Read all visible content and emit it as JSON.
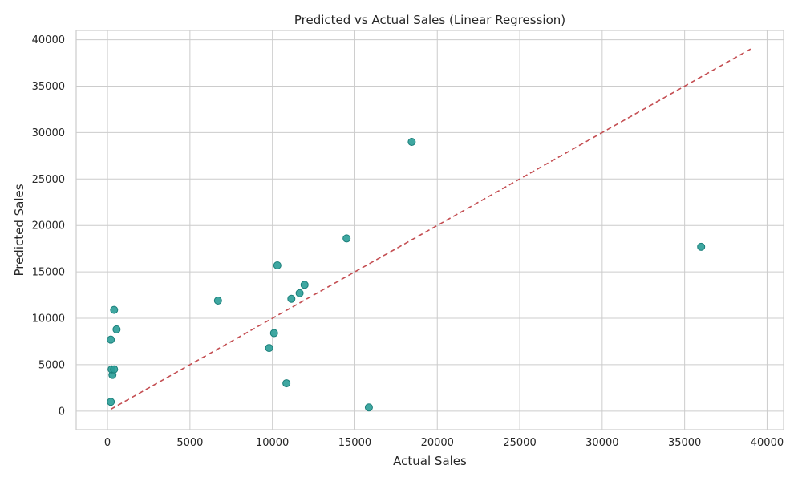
{
  "chart_data": {
    "type": "scatter",
    "title": "Predicted vs Actual Sales (Linear Regression)",
    "xlabel": "Actual Sales",
    "ylabel": "Predicted Sales",
    "xlim": [
      -1900,
      41000
    ],
    "ylim": [
      -2000,
      41000
    ],
    "x_ticks": [
      0,
      5000,
      10000,
      15000,
      20000,
      25000,
      30000,
      35000,
      40000
    ],
    "y_ticks": [
      0,
      5000,
      10000,
      15000,
      20000,
      25000,
      30000,
      35000,
      40000
    ],
    "grid": true,
    "colors": {
      "points": "#2a9d97",
      "reference_line": "#c44e52"
    },
    "reference_line": {
      "x": [
        200,
        39000
      ],
      "y": [
        200,
        39000
      ]
    },
    "points": [
      {
        "x": 200,
        "y": 1000
      },
      {
        "x": 300,
        "y": 3900
      },
      {
        "x": 250,
        "y": 4500
      },
      {
        "x": 400,
        "y": 4500
      },
      {
        "x": 200,
        "y": 7700
      },
      {
        "x": 550,
        "y": 8800
      },
      {
        "x": 400,
        "y": 10900
      },
      {
        "x": 6700,
        "y": 11900
      },
      {
        "x": 9800,
        "y": 6800
      },
      {
        "x": 10100,
        "y": 8400
      },
      {
        "x": 10300,
        "y": 15700
      },
      {
        "x": 10850,
        "y": 3000
      },
      {
        "x": 11150,
        "y": 12100
      },
      {
        "x": 11650,
        "y": 12700
      },
      {
        "x": 11950,
        "y": 13600
      },
      {
        "x": 14500,
        "y": 18600
      },
      {
        "x": 15850,
        "y": 400
      },
      {
        "x": 18450,
        "y": 29000
      },
      {
        "x": 36000,
        "y": 17700
      }
    ]
  }
}
